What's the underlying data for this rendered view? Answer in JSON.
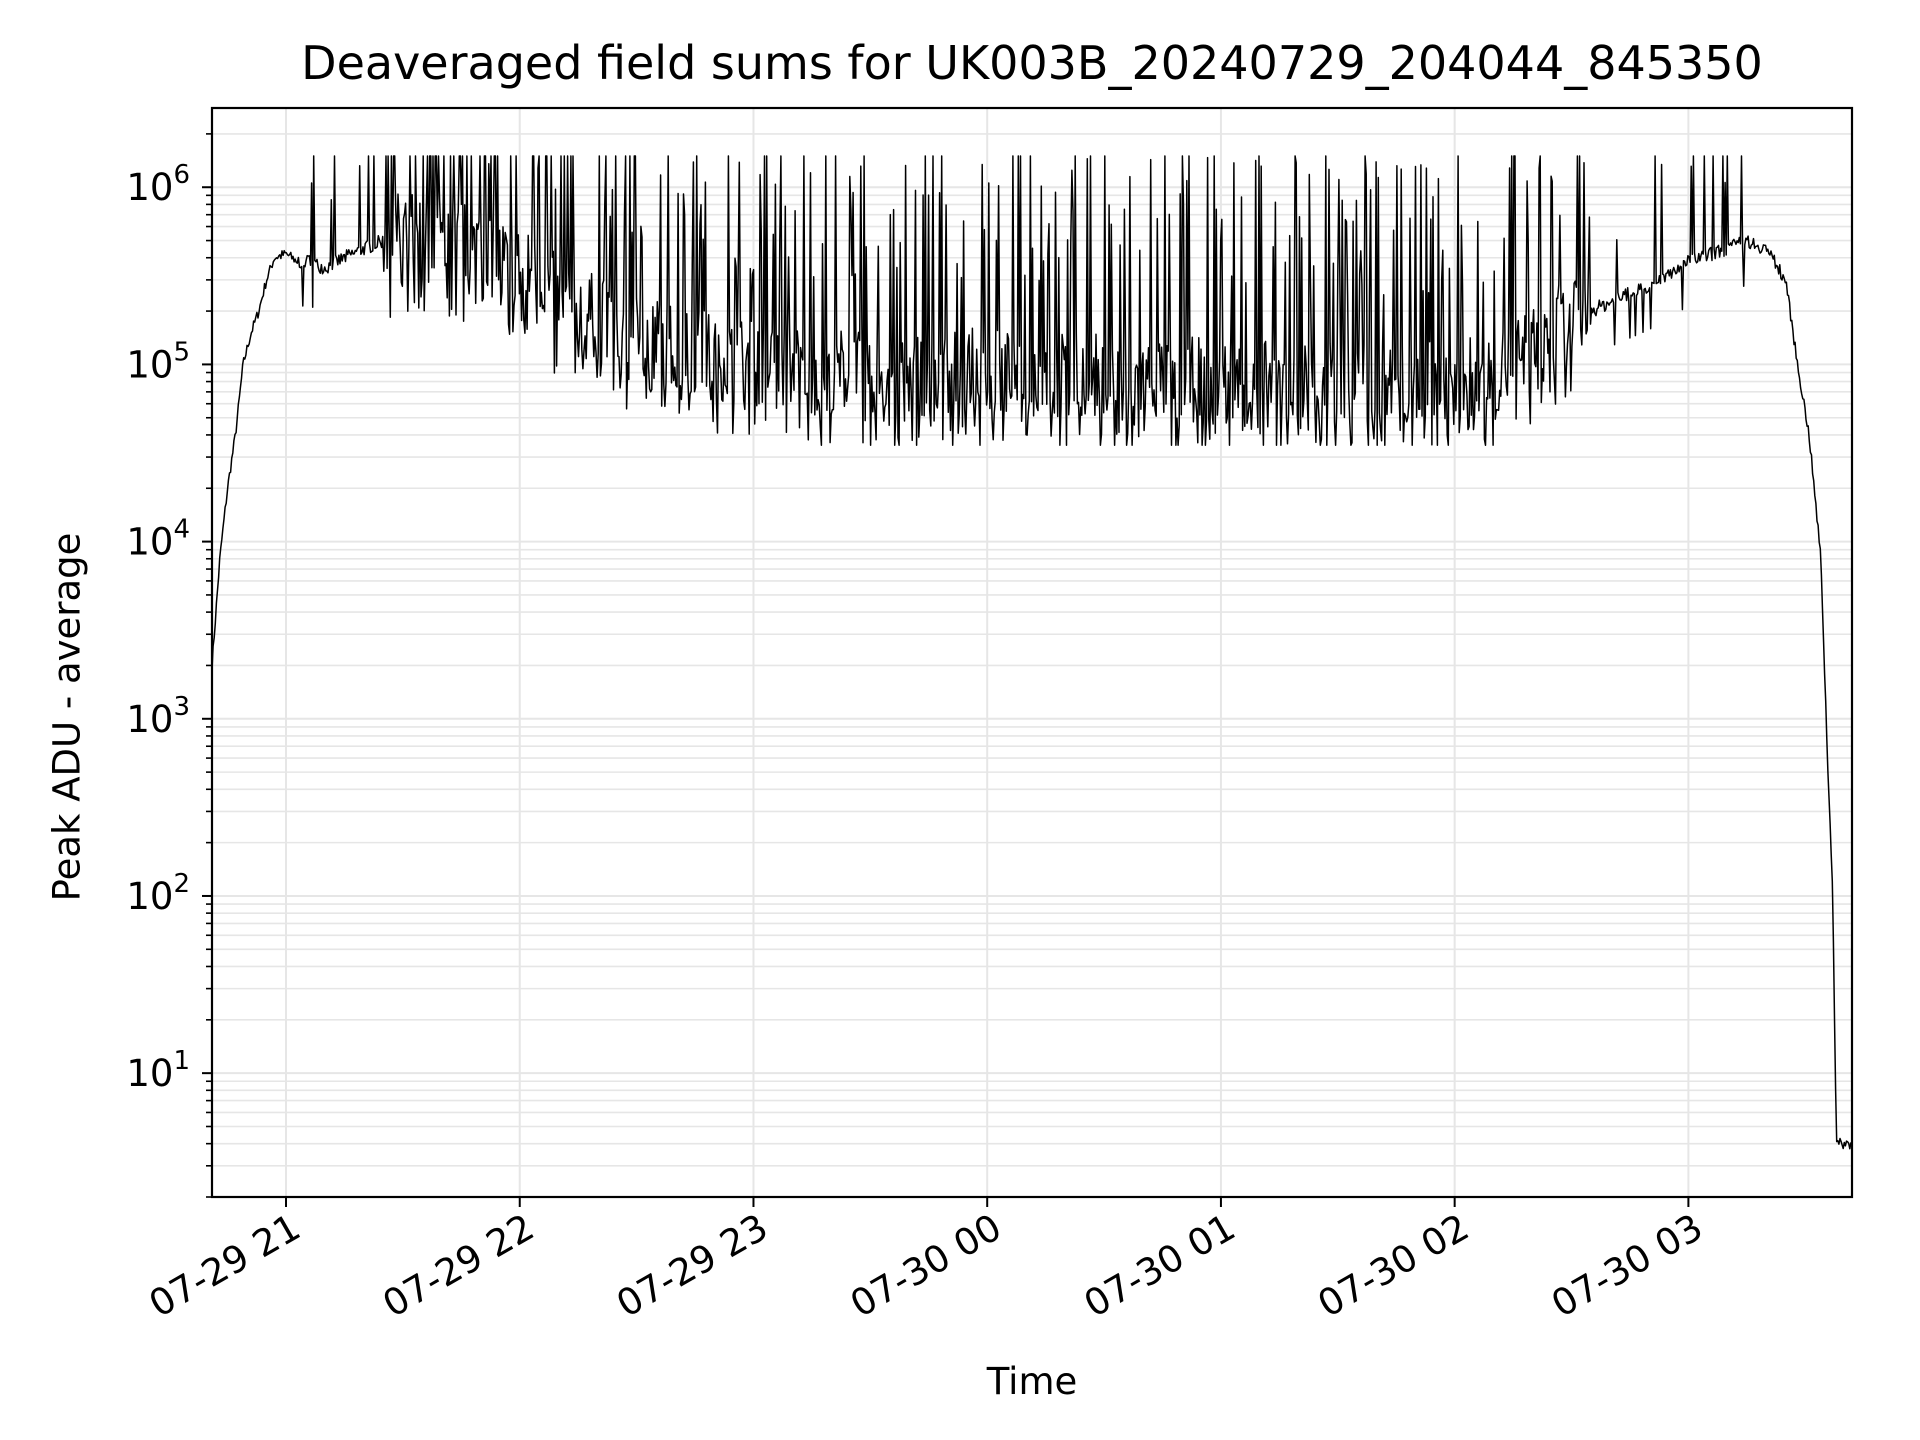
{
  "chart_data": {
    "type": "line",
    "title": "Deaveraged field sums for UK003B_20240729_204044_845350",
    "xlabel": "Time",
    "ylabel": "Peak ADU - average",
    "yscale": "log",
    "ylim": [
      2,
      2800000
    ],
    "xlim": [
      "2024-07-29 20:41",
      "2024-07-30 03:42"
    ],
    "grid": true,
    "line_color": "#000000",
    "grid_color": "#e6e6e6",
    "x_ticks": [
      "07-29 21",
      "07-29 22",
      "07-29 23",
      "07-30 00",
      "07-30 01",
      "07-30 02",
      "07-30 03"
    ],
    "y_ticks": [
      {
        "base": "10",
        "exp": "1",
        "value": 10
      },
      {
        "base": "10",
        "exp": "2",
        "value": 100
      },
      {
        "base": "10",
        "exp": "3",
        "value": 1000
      },
      {
        "base": "10",
        "exp": "4",
        "value": 10000
      },
      {
        "base": "10",
        "exp": "5",
        "value": 100000
      },
      {
        "base": "10",
        "exp": "6",
        "value": 1000000
      }
    ],
    "series": [
      {
        "x": [
          "2024-07-29 20:41",
          "2024-07-29 20:43",
          "2024-07-29 20:45",
          "2024-07-29 20:47",
          "2024-07-29 20:49",
          "2024-07-29 20:51",
          "2024-07-29 20:53",
          "2024-07-29 20:55",
          "2024-07-29 20:57",
          "2024-07-29 21:00",
          "2024-07-29 21:03",
          "2024-07-29 21:06",
          "2024-07-29 21:10",
          "2024-07-29 21:15",
          "2024-07-29 21:20",
          "2024-07-29 21:25",
          "2024-07-29 21:30",
          "2024-07-29 21:40",
          "2024-07-29 21:50",
          "2024-07-29 22:00",
          "2024-07-29 22:15",
          "2024-07-29 22:30",
          "2024-07-29 22:45",
          "2024-07-29 23:00",
          "2024-07-29 23:30",
          "2024-07-30 00:00",
          "2024-07-30 00:30",
          "2024-07-30 01:00",
          "2024-07-30 01:30",
          "2024-07-30 01:50",
          "2024-07-30 02:10",
          "2024-07-30 02:30",
          "2024-07-30 02:50",
          "2024-07-30 03:00",
          "2024-07-30 03:10",
          "2024-07-30 03:15",
          "2024-07-30 03:20",
          "2024-07-30 03:25",
          "2024-07-30 03:28",
          "2024-07-30 03:31",
          "2024-07-30 03:34",
          "2024-07-30 03:36",
          "2024-07-30 03:37",
          "2024-07-30 03:38",
          "2024-07-30 03:40",
          "2024-07-30 03:42"
        ],
        "y": [
          2000,
          8000,
          20000,
          40000,
          100000,
          150000,
          200000,
          300000,
          400000,
          420000,
          380000,
          380000,
          350000,
          400000,
          450000,
          500000,
          550000,
          500000,
          450000,
          350000,
          200000,
          150000,
          120000,
          100000,
          90000,
          90000,
          85000,
          80000,
          75000,
          75000,
          85000,
          180000,
          280000,
          380000,
          450000,
          500000,
          450000,
          300000,
          100000,
          40000,
          8000,
          400,
          120,
          4,
          4,
          4
        ],
        "peaks_y": [
          1500000,
          1400000,
          1300000,
          1200000,
          1100000
        ],
        "troughs_y": [
          35000,
          40000,
          50000,
          60000
        ]
      }
    ]
  }
}
